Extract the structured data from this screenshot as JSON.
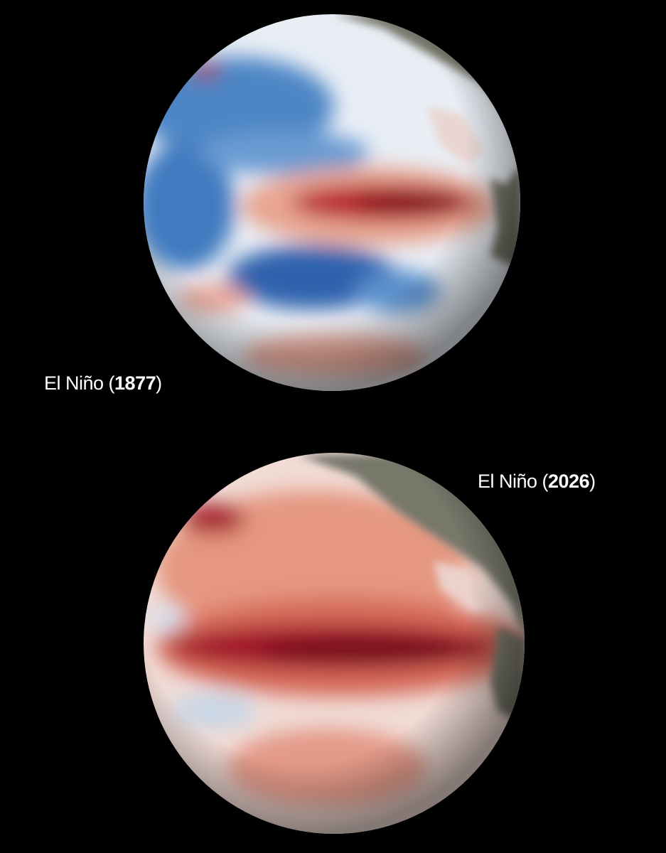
{
  "globes": [
    {
      "prefix": "El Niño (",
      "year": "1877",
      "suffix": ")"
    },
    {
      "prefix": "El Niño (",
      "year": "2026",
      "suffix": ")"
    }
  ]
}
